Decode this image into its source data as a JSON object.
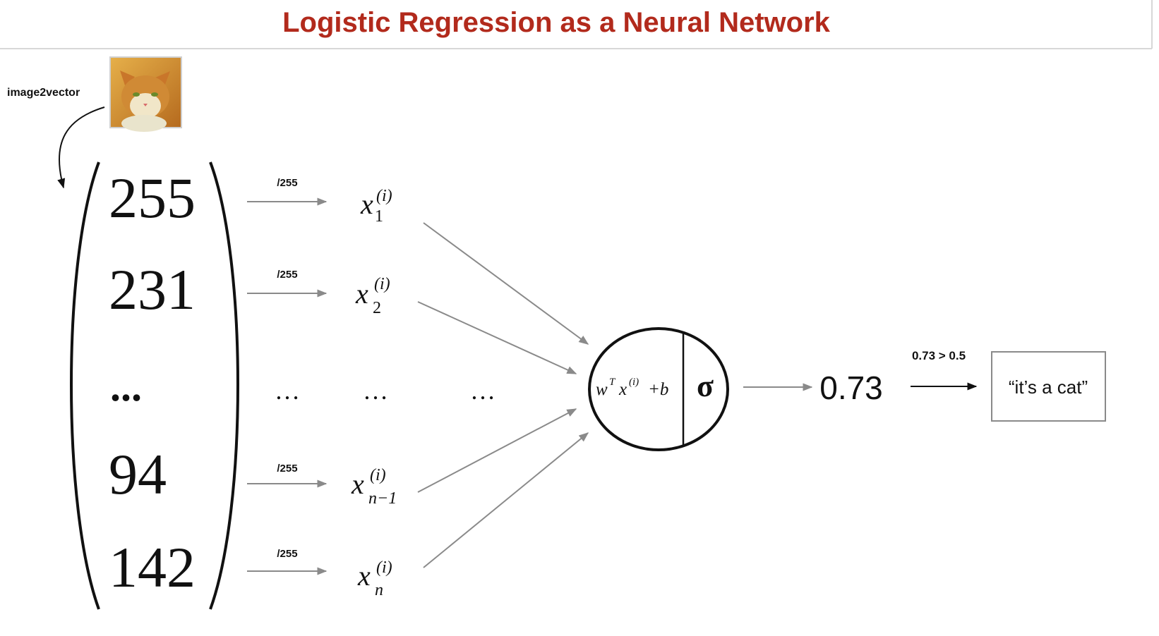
{
  "slide": {
    "title": "Logistic Regression as a Neural Network",
    "title_color": "#b22a1c"
  },
  "image2vector": {
    "label": "image2vector",
    "image_icon": "cat-photo-icon"
  },
  "vector": {
    "values": [
      "255",
      "231",
      "...",
      "94",
      "142"
    ]
  },
  "scale": {
    "label": "/255"
  },
  "inputs": [
    {
      "base": "x",
      "superscript": "(i)",
      "subscript": "1"
    },
    {
      "base": "x",
      "superscript": "(i)",
      "subscript": "2"
    },
    {
      "base": "x",
      "superscript": "(i)",
      "subscript": "n−1"
    },
    {
      "base": "x",
      "superscript": "(i)",
      "subscript": "n"
    }
  ],
  "ellipsis": "…",
  "neuron": {
    "linear_w": "w",
    "linear_T": "T",
    "linear_x": "x",
    "linear_i": "(i)",
    "linear_b": "+b",
    "activation": "σ"
  },
  "output": {
    "value": "0.73",
    "threshold_label": "0.73 > 0.5",
    "prediction": "“it’s a cat”"
  },
  "colors": {
    "arrow": "#8a8a8a",
    "ink": "#111111",
    "cat_orange": "#c9762a"
  }
}
